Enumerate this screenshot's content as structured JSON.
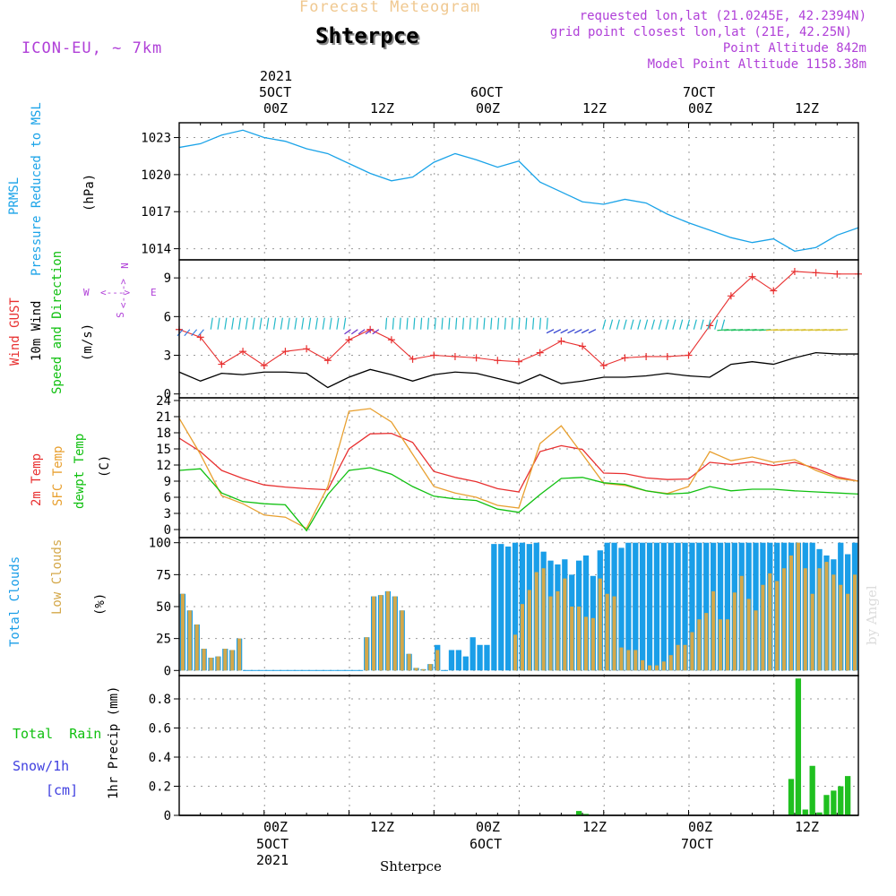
{
  "header": {
    "chart_title": "Forecast Meteogram",
    "station": "Shterpce",
    "model": "ICON-EU, ~ 7km",
    "requested": "requested lon,lat (21.0245E, 42.2394N)",
    "grid_point": "grid point closest lon,lat (21E, 42.25N)",
    "point_altitude": "Point Altitude 842m",
    "model_altitude": "Model Point Altitude 1158.38m",
    "watermark": "by Angel"
  },
  "time_axis": {
    "top_year": "2021",
    "top_days": [
      "5OCT",
      "6OCT",
      "7OCT"
    ],
    "hour_labels": [
      "00Z",
      "12Z",
      "00Z",
      "12Z",
      "00Z",
      "12Z"
    ],
    "bottom_hours": [
      "00Z",
      "12Z",
      "00Z",
      "12Z",
      "00Z",
      "12Z"
    ],
    "bottom_days": [
      "5OCT",
      "6OCT",
      "7OCT"
    ],
    "bottom_year": "2021",
    "bottom_station": "Shterpce"
  },
  "panel_labels": {
    "pressure": {
      "name1": "PRMSL",
      "name2": "Pressure Reduced to MSL",
      "unit": "(hPa)"
    },
    "wind": {
      "gust": "Wind GUST",
      "wind10": "10m Wind",
      "speed_dir": "Speed and Direction",
      "unit": "(m/s)",
      "compass_n": "N",
      "compass_s": "S",
      "compass_w": "W",
      "compass_e": "E",
      "compass_h": "<--->",
      "compass_v": "<--->"
    },
    "temp": {
      "t2m": "2m Temp",
      "sfc": "SFC Temp",
      "dew": "dewpt Temp",
      "unit": "(C)"
    },
    "clouds": {
      "total": "Total Clouds",
      "low": "Low Clouds",
      "unit": "(%)"
    },
    "precip": {
      "rain": "Total  Rain",
      "snow": "Snow/1h",
      "snow_unit": "[cm]",
      "axis": "1hr Precip (mm)"
    }
  },
  "colors": {
    "pressure": "#1aa3e8",
    "gust": "#e83030",
    "wind": "#000000",
    "temp2m": "#e83030",
    "sfc": "#e8a030",
    "dew": "#10c010",
    "total_clouds": "#1a9ee8",
    "low_clouds": "#d4a84a",
    "rain": "#20c020",
    "purple": "#b040d8",
    "snow": "#4040e0",
    "title_faded": "#f0c890"
  },
  "chart_data": [
    {
      "type": "line",
      "panel": "pressure",
      "ylabel": "(hPa)",
      "yticks": [
        1014,
        1017,
        1020,
        1023
      ],
      "ylim": [
        1013.1,
        1024.2
      ],
      "x_hours": [
        0,
        3,
        6,
        9,
        12,
        15,
        18,
        21,
        24,
        27,
        30,
        33,
        36,
        39,
        42,
        45,
        48,
        51,
        54,
        57,
        60,
        63,
        66,
        69,
        72,
        75,
        78,
        81,
        84,
        87,
        90,
        93,
        96
      ],
      "series": [
        {
          "values": [
            1022.2,
            1022.5,
            1023.2,
            1023.6,
            1023.0,
            1022.7,
            1022.1,
            1021.7,
            1020.9,
            1020.1,
            1019.5,
            1019.8,
            1021.0,
            1021.7,
            1021.2,
            1020.6,
            1021.1,
            1019.4,
            1018.6,
            1017.8,
            1017.6,
            1018.0,
            1017.7,
            1016.8,
            1016.1,
            1015.5,
            1014.9,
            1014.5,
            1014.8,
            1013.8,
            1014.1,
            1015.1,
            1015.7
          ]
        }
      ]
    },
    {
      "type": "line",
      "panel": "wind",
      "ylabel": "(m/s)",
      "yticks": [
        0,
        3,
        6,
        9
      ],
      "ylim": [
        -0.3,
        10.4
      ],
      "x_hours": [
        0,
        3,
        6,
        9,
        12,
        15,
        18,
        21,
        24,
        27,
        30,
        33,
        36,
        39,
        42,
        45,
        48,
        51,
        54,
        57,
        60,
        63,
        66,
        69,
        72,
        75,
        78,
        81,
        84,
        87,
        90,
        93,
        96
      ],
      "series": [
        {
          "name": "Wind GUST",
          "values": [
            5.0,
            4.4,
            2.3,
            3.3,
            2.2,
            3.3,
            3.5,
            2.6,
            4.2,
            5.0,
            4.2,
            2.7,
            3.0,
            2.9,
            2.8,
            2.6,
            2.5,
            3.2,
            4.1,
            3.7,
            2.2,
            2.8,
            2.9,
            2.9,
            3.0,
            5.3,
            7.6,
            9.1,
            8.0,
            9.5,
            9.4,
            9.3,
            9.3
          ]
        },
        {
          "name": "10m Wind",
          "values": [
            1.7,
            1.0,
            1.6,
            1.5,
            1.7,
            1.7,
            1.6,
            0.5,
            1.3,
            1.9,
            1.5,
            1.0,
            1.5,
            1.7,
            1.6,
            1.2,
            0.8,
            1.5,
            0.8,
            1.0,
            1.3,
            1.3,
            1.4,
            1.6,
            1.4,
            1.3,
            2.3,
            2.5,
            2.3,
            2.8,
            3.2,
            3.1,
            3.1
          ]
        }
      ],
      "direction_arrows": {
        "count": 96,
        "segments": [
          {
            "from": 0,
            "to": 4,
            "color": "#3a7fe0"
          },
          {
            "from": 4,
            "to": 24,
            "color": "#20b8c8"
          },
          {
            "from": 24,
            "to": 29,
            "color": "#6a30c8"
          },
          {
            "from": 29,
            "to": 53,
            "color": "#20b8c8"
          },
          {
            "from": 53,
            "to": 60,
            "color": "#3040d0"
          },
          {
            "from": 60,
            "to": 78,
            "color": "#20b8c8"
          },
          {
            "from": 78,
            "to": 85,
            "color": "#20c060"
          },
          {
            "from": 85,
            "to": 96,
            "color": "#d8c030"
          }
        ]
      }
    },
    {
      "type": "line",
      "panel": "temp",
      "ylabel": "(C)",
      "yticks": [
        0,
        3,
        6,
        9,
        12,
        15,
        18,
        21,
        24
      ],
      "ylim": [
        -1.5,
        24.5
      ],
      "x_hours": [
        0,
        3,
        6,
        9,
        12,
        15,
        18,
        21,
        24,
        27,
        30,
        33,
        36,
        39,
        42,
        45,
        48,
        51,
        54,
        57,
        60,
        63,
        66,
        69,
        72,
        75,
        78,
        81,
        84,
        87,
        90,
        93,
        96
      ],
      "series": [
        {
          "name": "2m Temp",
          "values": [
            17.0,
            14.5,
            11.0,
            9.5,
            8.3,
            7.9,
            7.6,
            7.4,
            15.0,
            17.8,
            17.9,
            16.2,
            10.8,
            9.7,
            8.9,
            7.6,
            7.0,
            14.5,
            15.6,
            14.9,
            10.5,
            10.4,
            9.6,
            9.3,
            9.4,
            12.5,
            12.1,
            12.6,
            11.9,
            12.5,
            11.4,
            9.8,
            9.0
          ]
        },
        {
          "name": "SFC Temp",
          "values": [
            20.7,
            14.0,
            6.3,
            4.8,
            2.7,
            2.3,
            0.2,
            8.0,
            22.0,
            22.5,
            20.0,
            14.0,
            8.0,
            6.8,
            6.0,
            4.5,
            4.0,
            16.0,
            19.3,
            14.0,
            8.6,
            8.2,
            7.2,
            6.7,
            8.0,
            14.5,
            12.8,
            13.5,
            12.5,
            13.0,
            11.0,
            9.5,
            9.0
          ]
        },
        {
          "name": "dewpt Temp",
          "values": [
            11.0,
            11.3,
            6.8,
            5.2,
            4.8,
            4.6,
            -0.2,
            6.5,
            11.0,
            11.5,
            10.3,
            8.0,
            6.2,
            5.7,
            5.4,
            3.8,
            3.2,
            6.5,
            9.5,
            9.7,
            8.7,
            8.4,
            7.2,
            6.6,
            6.8,
            8.0,
            7.2,
            7.5,
            7.5,
            7.2,
            7.0,
            6.8,
            6.6
          ]
        }
      ]
    },
    {
      "type": "bar",
      "panel": "clouds",
      "ylabel": "(%)",
      "yticks": [
        0,
        25,
        50,
        75,
        100
      ],
      "ylim": [
        -4,
        104
      ],
      "series": [
        {
          "name": "Total Clouds",
          "values": [
            60,
            47,
            36,
            17,
            10,
            11,
            17,
            16,
            25,
            0,
            0,
            0,
            0,
            0,
            0,
            0,
            0,
            0,
            0,
            0,
            0,
            0,
            0,
            0,
            0,
            0,
            26,
            58,
            59,
            62,
            58,
            47,
            13,
            2,
            1,
            5,
            20,
            0,
            16,
            16,
            11,
            26,
            20,
            20,
            99,
            99,
            97,
            100,
            100,
            99,
            100,
            93,
            86,
            83,
            87,
            75,
            86,
            90,
            74,
            94,
            100,
            100,
            96,
            100,
            100,
            100,
            100,
            100,
            100,
            100,
            100,
            100,
            100,
            100,
            100,
            100,
            100,
            100,
            100,
            100,
            100,
            100,
            100,
            100,
            100,
            100,
            100,
            100,
            100,
            100,
            95,
            90,
            87,
            100,
            91,
            100
          ]
        },
        {
          "name": "Low Clouds",
          "values": [
            60,
            47,
            36,
            17,
            10,
            11,
            17,
            16,
            25,
            0,
            0,
            0,
            0,
            0,
            0,
            0,
            0,
            0,
            0,
            0,
            0,
            0,
            0,
            0,
            0,
            0,
            26,
            58,
            59,
            62,
            58,
            47,
            13,
            2,
            1,
            5,
            16,
            0,
            0,
            0,
            0,
            0,
            0,
            0,
            0,
            0,
            0,
            28,
            52,
            63,
            77,
            80,
            58,
            62,
            72,
            50,
            50,
            42,
            41,
            72,
            60,
            58,
            18,
            16,
            16,
            8,
            4,
            4,
            7,
            12,
            20,
            20,
            30,
            40,
            45,
            62,
            40,
            40,
            61,
            74,
            56,
            47,
            67,
            76,
            70,
            80,
            90,
            100,
            80,
            60,
            80,
            85,
            75,
            67,
            60,
            75
          ]
        }
      ]
    },
    {
      "type": "bar",
      "panel": "precip",
      "ylabel": "1hr Precip (mm)",
      "yticks": [
        0,
        0.2,
        0.4,
        0.6,
        0.8
      ],
      "ylim": [
        0,
        0.96
      ],
      "series": [
        {
          "name": "Total Rain",
          "values": [
            0,
            0,
            0,
            0,
            0,
            0,
            0,
            0,
            0,
            0,
            0,
            0,
            0,
            0,
            0,
            0,
            0,
            0,
            0,
            0,
            0,
            0,
            0,
            0,
            0,
            0,
            0,
            0,
            0,
            0,
            0,
            0,
            0,
            0,
            0,
            0,
            0,
            0,
            0,
            0,
            0,
            0,
            0,
            0,
            0,
            0,
            0,
            0,
            0,
            0,
            0,
            0,
            0,
            0,
            0,
            0,
            0.03,
            0.01,
            0,
            0,
            0,
            0,
            0,
            0,
            0,
            0,
            0,
            0,
            0,
            0,
            0,
            0,
            0,
            0,
            0,
            0,
            0,
            0,
            0,
            0,
            0,
            0,
            0,
            0,
            0,
            0,
            0.25,
            0.94,
            0.04,
            0.34,
            0.02,
            0.14,
            0.17,
            0.2,
            0.27,
            0
          ]
        }
      ]
    }
  ]
}
